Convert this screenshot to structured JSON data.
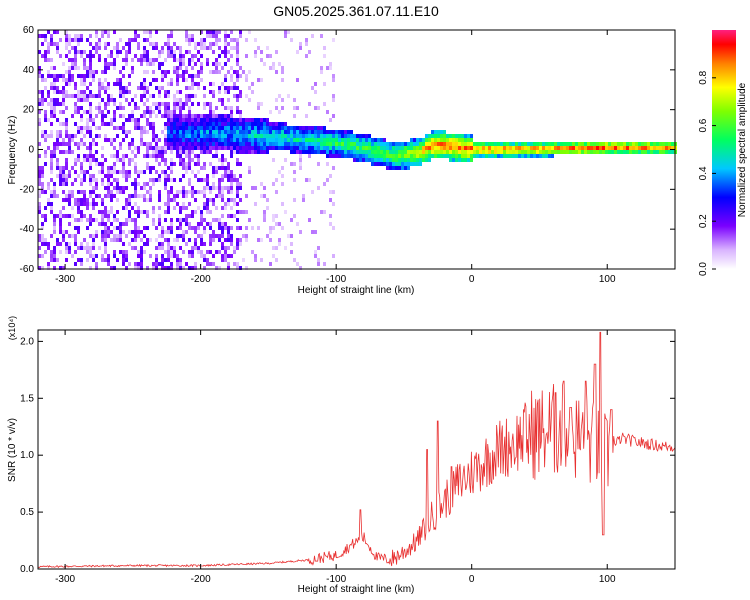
{
  "page": {
    "title": "GN05.2025.361.07.11.E10"
  },
  "chart_data": [
    {
      "type": "heatmap",
      "title": "GN05.2025.361.07.11.E10",
      "xlabel": "Height of straight line (km)",
      "ylabel": "Frequency (Hz)",
      "xlim": [
        -320,
        150
      ],
      "ylim": [
        -60,
        60
      ],
      "x_ticks": [
        -300,
        -200,
        -100,
        0,
        100
      ],
      "y_ticks": [
        -60,
        -40,
        -20,
        0,
        20,
        40,
        60
      ],
      "colorbar": {
        "label": "Normalized spectral amplitude",
        "range": [
          0,
          1
        ],
        "ticks": [
          0.0,
          0.2,
          0.4,
          0.6,
          0.8
        ],
        "colormap": "rainbow-white"
      },
      "ridge_center_x": [
        -220,
        -200,
        -180,
        -160,
        -140,
        -120,
        -100,
        -80,
        -60,
        -40,
        -30,
        -20,
        0,
        50,
        100,
        150
      ],
      "ridge_center_y": [
        8,
        8,
        8,
        7,
        6,
        5,
        3,
        1,
        -3,
        -2,
        2,
        2,
        0,
        0,
        1,
        1
      ],
      "ridge_amplitude": [
        0.35,
        0.4,
        0.4,
        0.45,
        0.5,
        0.5,
        0.55,
        0.6,
        0.6,
        0.75,
        0.9,
        0.9,
        0.9,
        0.9,
        0.9,
        0.85
      ],
      "noise_region_x": [
        -320,
        -170
      ],
      "grid": false
    },
    {
      "type": "line",
      "xlabel": "Height of straight line (km)",
      "ylabel": "SNR (10 * v/v)",
      "y_multiplier": "(x10⁴)",
      "xlim": [
        -320,
        150
      ],
      "ylim": [
        0,
        2.1
      ],
      "x_ticks": [
        -300,
        -200,
        -100,
        0,
        100
      ],
      "y_ticks": [
        0.0,
        0.5,
        1.0,
        1.5,
        2.0
      ],
      "line_color": "#e83030",
      "grid": false,
      "x": [
        -320,
        -250,
        -200,
        -150,
        -120,
        -100,
        -90,
        -80,
        -70,
        -60,
        -50,
        -40,
        -30,
        -20,
        -10,
        0,
        10,
        20,
        30,
        40,
        50,
        60,
        70,
        80,
        90,
        100,
        110,
        120,
        130,
        140,
        150
      ],
      "y": [
        0.02,
        0.03,
        0.03,
        0.05,
        0.08,
        0.12,
        0.2,
        0.28,
        0.1,
        0.08,
        0.15,
        0.25,
        0.45,
        0.6,
        0.75,
        0.85,
        0.95,
        1.05,
        1.1,
        1.18,
        1.2,
        1.22,
        1.2,
        1.15,
        1.1,
        1.0,
        1.15,
        1.12,
        1.1,
        1.08,
        1.07
      ],
      "spikes": [
        {
          "x": -33,
          "y": 1.05
        },
        {
          "x": -25,
          "y": 1.3
        },
        {
          "x": -15,
          "y": 0.9
        },
        {
          "x": 62,
          "y": 1.55
        },
        {
          "x": 68,
          "y": 1.65
        },
        {
          "x": 73,
          "y": 1.42
        },
        {
          "x": 84,
          "y": 1.65
        },
        {
          "x": 91,
          "y": 1.8
        },
        {
          "x": 95,
          "y": 2.08
        },
        {
          "x": 97,
          "y": 0.3
        },
        {
          "x": 103,
          "y": 1.4
        },
        {
          "x": -82,
          "y": 0.52
        }
      ]
    }
  ]
}
